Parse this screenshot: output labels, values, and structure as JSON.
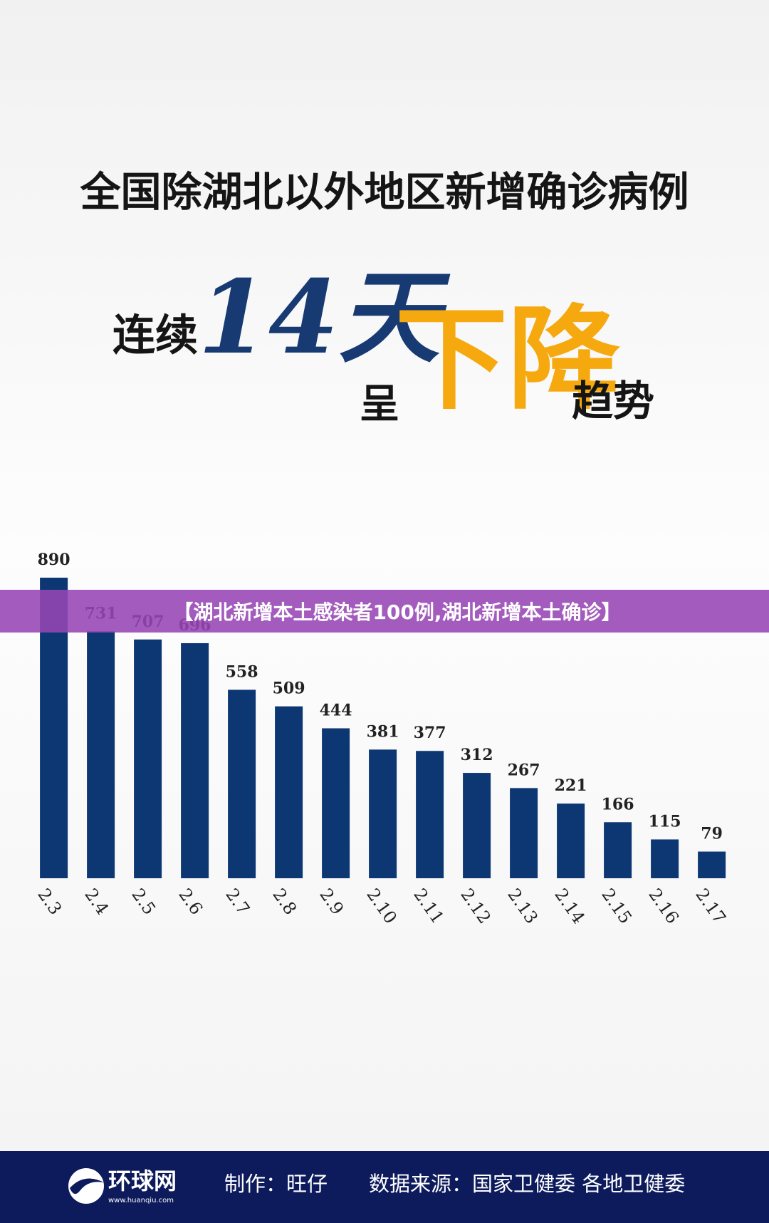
{
  "chart_data": {
    "type": "bar",
    "title": "全国除湖北以外地区新增确诊病例",
    "headline": [
      "连续",
      "14天",
      "呈",
      "下降",
      "趋势"
    ],
    "categories": [
      "2.3",
      "2.4",
      "2.5",
      "2.6",
      "2.7",
      "2.8",
      "2.9",
      "2.10",
      "2.11",
      "2.12",
      "2.13",
      "2.14",
      "2.15",
      "2.16",
      "2.17"
    ],
    "values": [
      890,
      731,
      707,
      696,
      558,
      509,
      444,
      381,
      377,
      312,
      267,
      221,
      166,
      115,
      79
    ],
    "color": "#0c3773"
  },
  "banner": "【湖北新增本土感染者100例,湖北新增本土确诊】",
  "footer": {
    "logo": "环球网",
    "url": "www.huanqiu.com",
    "credit": "制作：旺仔",
    "source": "数据来源：国家卫健委 各地卫健委"
  }
}
